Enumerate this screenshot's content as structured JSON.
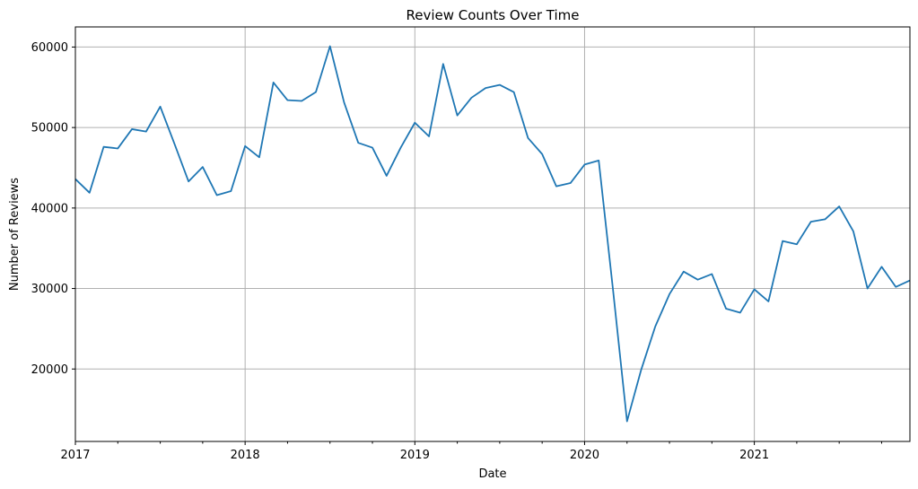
{
  "chart_data": {
    "type": "line",
    "title": "Review Counts Over Time",
    "xlabel": "Date",
    "ylabel": "Number of Reviews",
    "x_range": [
      "2017-01",
      "2021-12"
    ],
    "ylim": [
      11000,
      62500
    ],
    "x_ticks": [
      "2017",
      "2018",
      "2019",
      "2020",
      "2021"
    ],
    "x_tick_dates": [
      "2017-01",
      "2018-01",
      "2019-01",
      "2020-01",
      "2021-01"
    ],
    "y_ticks": [
      20000,
      30000,
      40000,
      50000,
      60000
    ],
    "grid": true,
    "color": "#1f77b4",
    "series": [
      {
        "x": [
          "2017-01",
          "2017-02",
          "2017-03",
          "2017-04",
          "2017-05",
          "2017-06",
          "2017-07",
          "2017-08",
          "2017-09",
          "2017-10",
          "2017-11",
          "2017-12",
          "2018-01",
          "2018-02",
          "2018-03",
          "2018-04",
          "2018-05",
          "2018-06",
          "2018-07",
          "2018-08",
          "2018-09",
          "2018-10",
          "2018-11",
          "2018-12",
          "2019-01",
          "2019-02",
          "2019-03",
          "2019-04",
          "2019-05",
          "2019-06",
          "2019-07",
          "2019-08",
          "2019-09",
          "2019-10",
          "2019-11",
          "2019-12",
          "2020-01",
          "2020-02",
          "2020-03",
          "2020-04",
          "2020-05",
          "2020-06",
          "2020-07",
          "2020-08",
          "2020-09",
          "2020-10",
          "2020-11",
          "2020-12",
          "2021-01",
          "2021-02",
          "2021-03",
          "2021-04",
          "2021-05",
          "2021-06",
          "2021-07",
          "2021-08",
          "2021-09",
          "2021-10",
          "2021-11",
          "2021-12"
        ],
        "values": [
          43600,
          41900,
          47600,
          47400,
          49800,
          49500,
          52600,
          48000,
          43300,
          45100,
          41600,
          42100,
          47700,
          46300,
          55600,
          53400,
          53300,
          54400,
          60100,
          53100,
          48100,
          47500,
          44000,
          47500,
          50600,
          48900,
          57900,
          51500,
          53700,
          54900,
          55300,
          54400,
          48700,
          46700,
          42700,
          43100,
          45400,
          45900,
          30000,
          13500,
          19900,
          25300,
          29300,
          32100,
          31100,
          31800,
          27500,
          27000,
          29900,
          28400,
          35900,
          35500,
          38300,
          38600,
          40200,
          37100,
          30000,
          32700,
          30200,
          31000
        ]
      }
    ]
  }
}
